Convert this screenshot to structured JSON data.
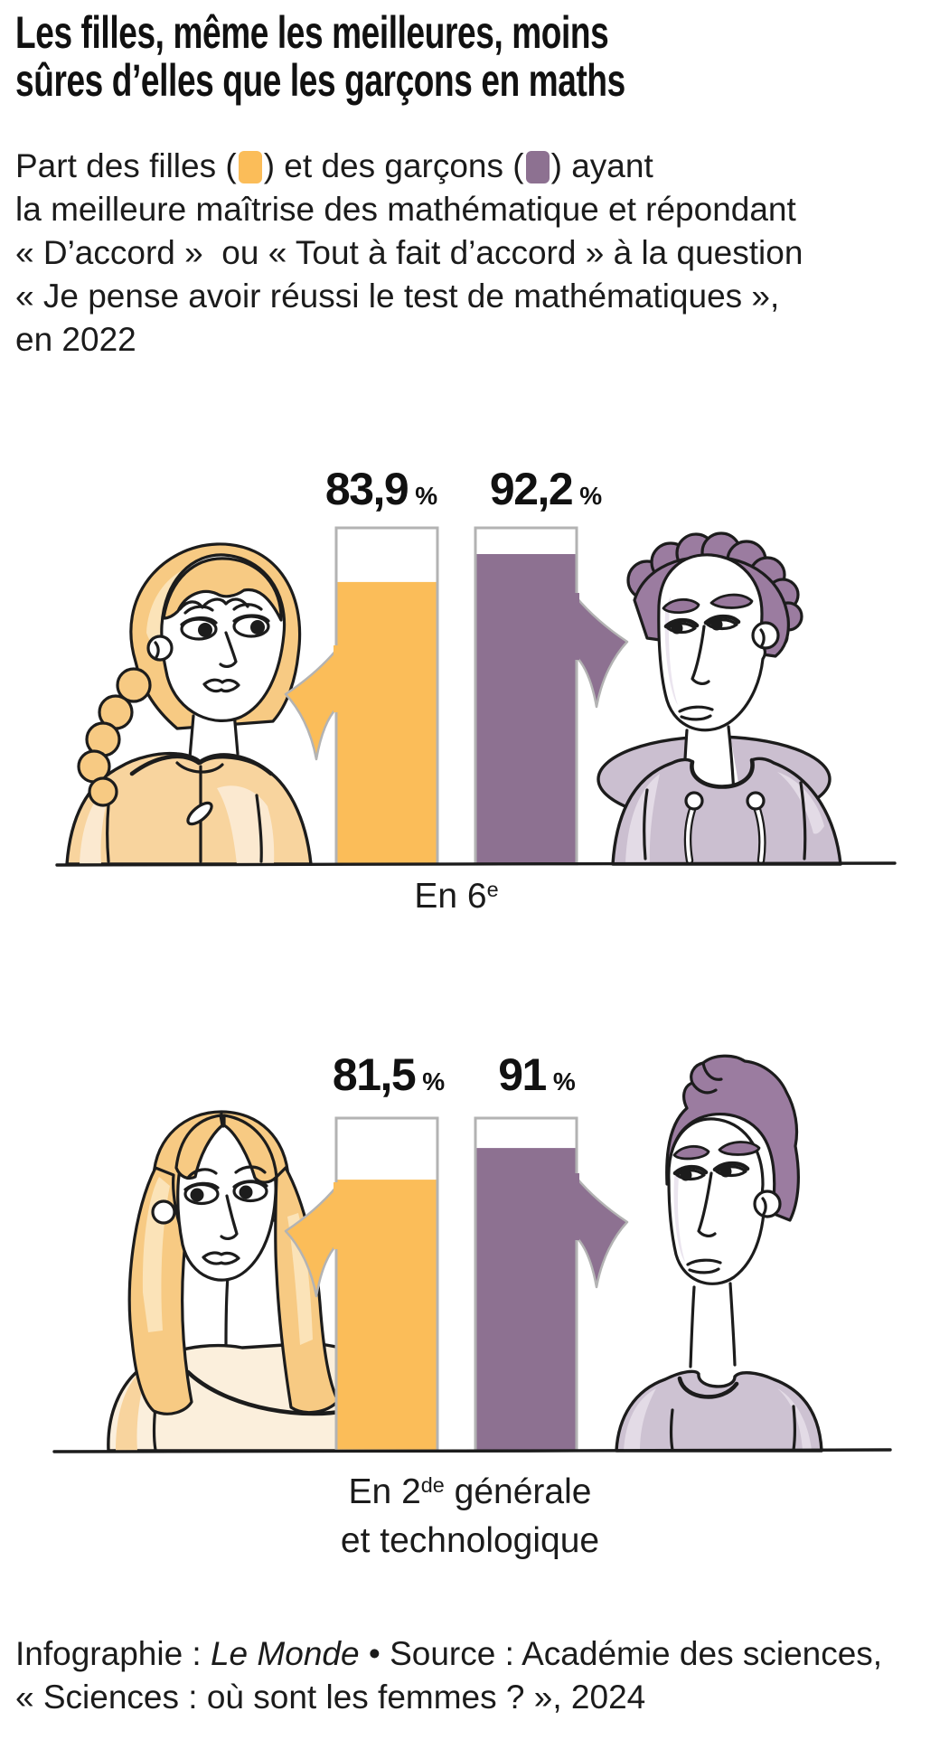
{
  "title": {
    "line1": "Les filles, même les meilleures, moins",
    "line2": "sûres d’elles que les garçons en maths"
  },
  "subtitle": {
    "line1_pre": "Part des filles (",
    "line1_mid": ") et des garçons (",
    "line1_post": ") ayant",
    "line2": "la meilleure maîtrise des mathématique et répondant",
    "line3": "« D’accord »  ou « Tout à fait d’accord » à la question",
    "line4": "« Je pense avoir réussi le test de mathématiques »,",
    "line5": "en 2022"
  },
  "chart_data": {
    "type": "bar",
    "unit": "%",
    "ylim": [
      0,
      100
    ],
    "legend": {
      "girls": "filles",
      "boys": "garçons"
    },
    "colors": {
      "girls": "#FBBD59",
      "boys": "#8D7191"
    },
    "groups": [
      {
        "label": "En 6e",
        "label_parts": {
          "pre": "En 6",
          "sup": "e",
          "post": ""
        },
        "series": [
          {
            "key": "girls",
            "name": "filles",
            "value": 83.9,
            "display": "83,9"
          },
          {
            "key": "boys",
            "name": "garçons",
            "value": 92.2,
            "display": "92,2"
          }
        ]
      },
      {
        "label": "En 2de générale et technologique",
        "label_parts": {
          "pre": "En 2",
          "sup": "de",
          "post": " générale"
        },
        "label_line2": "et technologique",
        "series": [
          {
            "key": "girls",
            "name": "filles",
            "value": 81.5,
            "display": "81,5"
          },
          {
            "key": "boys",
            "name": "garçons",
            "value": 91,
            "display": "91"
          }
        ]
      }
    ]
  },
  "footer": {
    "line1_pre": "Infographie : ",
    "line1_source": "Le Monde",
    "line1_post": " • Source : Académie des sciences,",
    "line2": "« Sciences : où sont les femmes ? », 2024"
  }
}
